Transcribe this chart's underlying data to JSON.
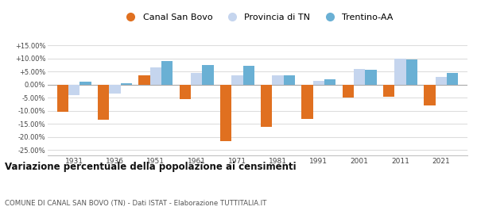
{
  "years": [
    1931,
    1936,
    1951,
    1961,
    1971,
    1981,
    1991,
    2001,
    2011,
    2021
  ],
  "canal_san_bovo": [
    -10.5,
    -13.5,
    3.5,
    -5.5,
    -21.5,
    -16.0,
    -13.0,
    -5.0,
    -4.5,
    -8.0
  ],
  "provincia_tn": [
    -4.0,
    -3.5,
    6.5,
    4.5,
    3.5,
    3.5,
    1.5,
    6.0,
    10.0,
    3.0
  ],
  "trentino_aa": [
    1.0,
    0.5,
    9.0,
    7.5,
    7.0,
    3.5,
    2.0,
    5.5,
    9.5,
    4.5
  ],
  "canal_color": "#e07020",
  "provincia_color": "#c5d5ee",
  "trentino_color": "#6ab0d4",
  "bg_color": "#ffffff",
  "grid_color": "#dddddd",
  "ylim": [
    -27,
    17
  ],
  "yticks": [
    -25,
    -20,
    -15,
    -10,
    -5,
    0,
    5,
    10,
    15
  ],
  "title": "Variazione percentuale della popolazione ai censimenti",
  "subtitle": "COMUNE DI CANAL SAN BOVO (TN) - Dati ISTAT - Elaborazione TUTTITALIA.IT",
  "legend_labels": [
    "Canal San Bovo",
    "Provincia di TN",
    "Trentino-AA"
  ],
  "bar_width": 0.28
}
